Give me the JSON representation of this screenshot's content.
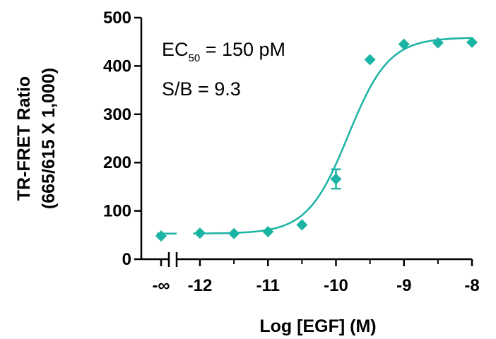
{
  "chart_data": {
    "type": "scatter",
    "xlabel": "Log [EGF] (M)",
    "ylabel_line1": "TR-FRET Ratio",
    "ylabel_line2": "(665/615 X 1,000)",
    "ylim": [
      0,
      500
    ],
    "yticks": [
      0,
      100,
      200,
      300,
      400,
      500
    ],
    "xlim": [
      -12,
      -8
    ],
    "xticks": [
      {
        "label": "-∞",
        "value": null
      },
      {
        "label": "-12",
        "value": -12
      },
      {
        "label": "-11",
        "value": -11
      },
      {
        "label": "-10",
        "value": -10
      },
      {
        "label": "-9",
        "value": -9
      },
      {
        "label": "-8",
        "value": -8
      }
    ],
    "axis_break": true,
    "grid": false,
    "series": [
      {
        "color": "#1BB3A3",
        "marker": "diamond",
        "points": [
          {
            "x": "-∞",
            "y": 48
          },
          {
            "x": -12,
            "y": 54
          },
          {
            "x": -11.5,
            "y": 53
          },
          {
            "x": -11,
            "y": 57
          },
          {
            "x": -10.5,
            "y": 71
          },
          {
            "x": -10,
            "y": 166,
            "err": 20
          },
          {
            "x": -9.5,
            "y": 413
          },
          {
            "x": -9,
            "y": 445
          },
          {
            "x": -8.5,
            "y": 448
          },
          {
            "x": -8,
            "y": 449
          }
        ]
      }
    ],
    "fit": {
      "bottom": 53,
      "top": 459,
      "log_ec50": -9.82,
      "hill": 1.45,
      "x_from": -12.1,
      "x_to": -8
    },
    "annotations": {
      "ec50_prefix": "EC",
      "ec50_sub": "50",
      "ec50_value": " = 150 pM",
      "sb": "S/B = 9.3"
    }
  }
}
